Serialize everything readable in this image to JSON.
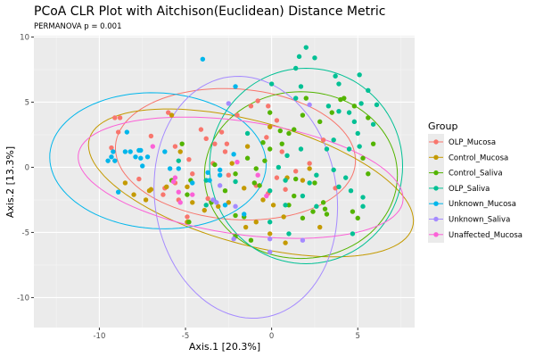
{
  "chart_data": {
    "type": "scatter",
    "title": "PCoA CLR Plot with Aitchison(Euclidean) Distance Metric",
    "subtitle": "PERMANOVA p = 0.001",
    "xlabel": "Axis.1   [20.3%]",
    "ylabel": "Axis.2   [13.3%]",
    "xlim": [
      -13.8,
      8.3
    ],
    "ylim": [
      -12.3,
      10.1
    ],
    "xticks": [
      -10,
      -5,
      0,
      5
    ],
    "yticks": [
      -10,
      -5,
      0,
      5,
      10
    ],
    "xtick_labels": [
      "-10",
      "-5",
      "0",
      "5"
    ],
    "ytick_labels": [
      "-10",
      "-5",
      "0",
      "5",
      "10"
    ],
    "grid": true,
    "legend_title": "Group",
    "legend_position": "right",
    "series": [
      {
        "name": "OLP_Mucosa",
        "color": "#F8766D",
        "ellipse": {
          "cx": -2.1,
          "cy": 1.0,
          "a": 7.0,
          "b": 5.0,
          "angle": -8
        },
        "points": [
          [
            -9.1,
            3.8
          ],
          [
            -8.8,
            3.8
          ],
          [
            -8.9,
            2.7
          ],
          [
            -9.3,
            1.5
          ],
          [
            -7.0,
            2.4
          ],
          [
            -6.0,
            4.2
          ],
          [
            -4.8,
            0.6
          ],
          [
            -4.1,
            2.9
          ],
          [
            -3.8,
            2.2
          ],
          [
            -3.3,
            1.8
          ],
          [
            -3.4,
            0.3
          ],
          [
            -2.6,
            1.8
          ],
          [
            -2.9,
            2.7
          ],
          [
            -2.7,
            1.2
          ],
          [
            -2.5,
            -0.6
          ],
          [
            -2.0,
            4.0
          ],
          [
            -0.8,
            5.1
          ],
          [
            -0.2,
            4.7
          ],
          [
            -1.2,
            4.7
          ],
          [
            0.3,
            3.6
          ],
          [
            -0.3,
            2.3
          ],
          [
            0.6,
            1.2
          ],
          [
            1.4,
            -0.3
          ],
          [
            0.8,
            -1.7
          ],
          [
            3.0,
            2.1
          ],
          [
            0.3,
            -0.8
          ],
          [
            2.2,
            0.3
          ],
          [
            3.7,
            -1.6
          ],
          [
            -4.9,
            -3.8
          ],
          [
            -6.2,
            -1.6
          ],
          [
            -5.6,
            -1.2
          ],
          [
            -6.3,
            -2.1
          ],
          [
            -5.4,
            -2.5
          ],
          [
            -4.6,
            -0.5
          ],
          [
            -3.7,
            -2.4
          ],
          [
            -0.2,
            -2.0
          ],
          [
            -0.9,
            -1.4
          ],
          [
            -7.7,
            -0.9
          ],
          [
            -5.6,
            1.6
          ]
        ]
      },
      {
        "name": "Control_Mucosa",
        "color": "#C49A00",
        "ellipse": {
          "cx": -1.2,
          "cy": -1.2,
          "a": 10.0,
          "b": 4.6,
          "angle": -22
        },
        "points": [
          [
            -5.8,
            4.0
          ],
          [
            -8.5,
            -1.2
          ],
          [
            -8.0,
            -2.1
          ],
          [
            -7.3,
            -2.5
          ],
          [
            -7.0,
            -1.7
          ],
          [
            -4.9,
            -1.5
          ],
          [
            -4.6,
            -2.7
          ],
          [
            -4.9,
            -4.2
          ],
          [
            -3.9,
            -3.3
          ],
          [
            -3.1,
            -3.0
          ],
          [
            -2.5,
            -2.7
          ],
          [
            0.1,
            -2.9
          ],
          [
            0.9,
            -0.8
          ],
          [
            -0.1,
            3.1
          ],
          [
            -1.4,
            1.6
          ],
          [
            -2.3,
            0.3
          ],
          [
            0.8,
            -5.8
          ],
          [
            2.2,
            -0.1
          ],
          [
            2.8,
            -4.6
          ],
          [
            0.7,
            -3.8
          ],
          [
            -0.1,
            -5.1
          ],
          [
            1.8,
            -1.0
          ],
          [
            -0.9,
            -4.2
          ],
          [
            -1.6,
            -1.6
          ],
          [
            -5.3,
            1.2
          ],
          [
            -6.1,
            -1.5
          ],
          [
            -0.5,
            -2.5
          ],
          [
            -7.1,
            -1.8
          ],
          [
            -1.5,
            -4.6
          ]
        ]
      },
      {
        "name": "Control_Saliva",
        "color": "#53B400",
        "ellipse": {
          "cx": 1.7,
          "cy": -0.6,
          "a": 5.6,
          "b": 6.4,
          "angle": 0
        },
        "points": [
          [
            -5.2,
            1.8
          ],
          [
            -5.8,
            -1.0
          ],
          [
            -4.9,
            -2.1
          ],
          [
            -4.7,
            -1.0
          ],
          [
            -4.8,
            -4.2
          ],
          [
            -0.1,
            4.2
          ],
          [
            -1.4,
            0.7
          ],
          [
            -0.4,
            0.5
          ],
          [
            -0.1,
            1.4
          ],
          [
            0.5,
            2.8
          ],
          [
            0.6,
            1.8
          ],
          [
            1.0,
            2.6
          ],
          [
            1.3,
            2.9
          ],
          [
            1.8,
            4.0
          ],
          [
            2.0,
            5.3
          ],
          [
            3.5,
            4.2
          ],
          [
            4.0,
            5.2
          ],
          [
            2.8,
            3.5
          ],
          [
            5.3,
            0.7
          ],
          [
            5.6,
            -0.5
          ],
          [
            4.7,
            -3.4
          ],
          [
            5.0,
            -3.9
          ],
          [
            1.8,
            -3.9
          ],
          [
            1.0,
            -2.9
          ],
          [
            2.4,
            -3.4
          ],
          [
            -2.1,
            -3.7
          ],
          [
            -1.0,
            -1.2
          ],
          [
            -3.5,
            -2.7
          ],
          [
            -3.3,
            0.2
          ],
          [
            -2.1,
            -0.5
          ],
          [
            -0.7,
            -1.4
          ],
          [
            1.4,
            -0.9
          ],
          [
            2.5,
            -1.2
          ],
          [
            3.0,
            -2.7
          ],
          [
            3.2,
            -3.6
          ],
          [
            4.8,
            4.7
          ],
          [
            5.6,
            3.8
          ],
          [
            -0.5,
            1.9
          ],
          [
            -1.6,
            -3.8
          ],
          [
            -2.1,
            -5.3
          ],
          [
            -1.2,
            -5.6
          ],
          [
            4.2,
            5.3
          ],
          [
            5.9,
            1.8
          ],
          [
            3.1,
            -3.2
          ],
          [
            1.3,
            -2.2
          ],
          [
            -0.9,
            -0.1
          ],
          [
            -2.7,
            -1.8
          ]
        ]
      },
      {
        "name": "OLP_Saliva",
        "color": "#00C094",
        "ellipse": {
          "cx": 2.0,
          "cy": 0.1,
          "a": 5.6,
          "b": 7.5,
          "angle": 0
        },
        "points": [
          [
            2.0,
            9.2
          ],
          [
            1.6,
            8.5
          ],
          [
            2.5,
            8.4
          ],
          [
            1.4,
            7.6
          ],
          [
            0.0,
            6.4
          ],
          [
            1.7,
            6.2
          ],
          [
            3.7,
            7.0
          ],
          [
            3.9,
            6.4
          ],
          [
            5.1,
            7.1
          ],
          [
            5.6,
            5.9
          ],
          [
            5.2,
            4.9
          ],
          [
            4.5,
            4.2
          ],
          [
            6.1,
            4.8
          ],
          [
            3.9,
            4.3
          ],
          [
            4.8,
            3.5
          ],
          [
            5.0,
            2.6
          ],
          [
            5.9,
            3.3
          ],
          [
            3.6,
            2.1
          ],
          [
            4.5,
            1.4
          ],
          [
            3.2,
            1.4
          ],
          [
            2.6,
            -0.6
          ],
          [
            3.6,
            -0.2
          ],
          [
            4.3,
            -0.8
          ],
          [
            3.9,
            -1.5
          ],
          [
            4.6,
            -1.8
          ],
          [
            5.3,
            -2.3
          ],
          [
            5.3,
            -3.0
          ],
          [
            1.8,
            -2.2
          ],
          [
            2.6,
            -3.0
          ],
          [
            0.8,
            -2.9
          ],
          [
            -0.1,
            -4.2
          ],
          [
            1.0,
            -5.1
          ],
          [
            0.4,
            0.0
          ],
          [
            0.9,
            0.9
          ],
          [
            1.7,
            1.4
          ],
          [
            -1.4,
            2.6
          ],
          [
            -2.1,
            -1.1
          ],
          [
            -3.8,
            -1.0
          ],
          [
            -5.4,
            0.5
          ],
          [
            -3.8,
            -2.9
          ],
          [
            0.8,
            -1.0
          ],
          [
            4.7,
            -5.1
          ],
          [
            2.2,
            -1.2
          ],
          [
            5.1,
            1.6
          ],
          [
            3.3,
            4.7
          ],
          [
            -0.1,
            -1.8
          ],
          [
            1.4,
            5.3
          ]
        ]
      },
      {
        "name": "Unknown_Mucosa",
        "color": "#00B6EB",
        "ellipse": {
          "cx": -6.6,
          "cy": 0.5,
          "a": 6.3,
          "b": 5.2,
          "angle": -8
        },
        "points": [
          [
            -4.0,
            8.3
          ],
          [
            -8.4,
            2.7
          ],
          [
            -9.2,
            1.2
          ],
          [
            -9.5,
            0.5
          ],
          [
            -9.1,
            0.5
          ],
          [
            -8.5,
            1.2
          ],
          [
            -8.2,
            1.2
          ],
          [
            -7.9,
            0.8
          ],
          [
            -7.6,
            0.7
          ],
          [
            -7.7,
            1.3
          ],
          [
            -7.6,
            1.3
          ],
          [
            -7.2,
            0.8
          ],
          [
            -6.2,
            1.2
          ],
          [
            -5.9,
            -0.1
          ],
          [
            -4.6,
            -1.2
          ],
          [
            -8.9,
            -1.9
          ],
          [
            -3.7,
            -0.4
          ],
          [
            -3.6,
            -1.0
          ],
          [
            -3.0,
            -0.6
          ],
          [
            -2.1,
            6.2
          ],
          [
            -2.2,
            1.0
          ],
          [
            -5.4,
            -0.1
          ],
          [
            -2.7,
            -2.9
          ],
          [
            -7.5,
            0.1
          ],
          [
            -9.3,
            0.8
          ],
          [
            -3.0,
            -0.2
          ],
          [
            -1.6,
            -3.6
          ]
        ]
      },
      {
        "name": "Unknown_Saliva",
        "color": "#A58AFF",
        "ellipse": {
          "cx": -1.5,
          "cy": -2.3,
          "a": 9.3,
          "b": 5.3,
          "angle": 94
        },
        "points": [
          [
            -3.4,
            -2.5
          ],
          [
            -3.2,
            -2.7
          ],
          [
            -0.1,
            -6.5
          ],
          [
            -2.2,
            -5.5
          ],
          [
            -3.0,
            -1.4
          ],
          [
            -2.5,
            4.9
          ],
          [
            2.2,
            4.8
          ],
          [
            -0.1,
            -5.5
          ],
          [
            1.8,
            -5.6
          ],
          [
            -2.1,
            -3.0
          ]
        ]
      },
      {
        "name": "Unaffected_Mucosa",
        "color": "#FB61D7",
        "ellipse": {
          "cx": -1.8,
          "cy": -0.8,
          "a": 9.6,
          "b": 4.3,
          "angle": -12
        },
        "points": [
          [
            -6.9,
            1.6
          ],
          [
            -5.6,
            -0.8
          ],
          [
            -5.7,
            -1.1
          ],
          [
            -5.4,
            -1.9
          ],
          [
            -5.3,
            -2.7
          ],
          [
            -0.3,
            -2.2
          ],
          [
            -4.6,
            -2.1
          ],
          [
            -2.0,
            0.4
          ],
          [
            -0.8,
            -0.6
          ]
        ]
      }
    ]
  }
}
